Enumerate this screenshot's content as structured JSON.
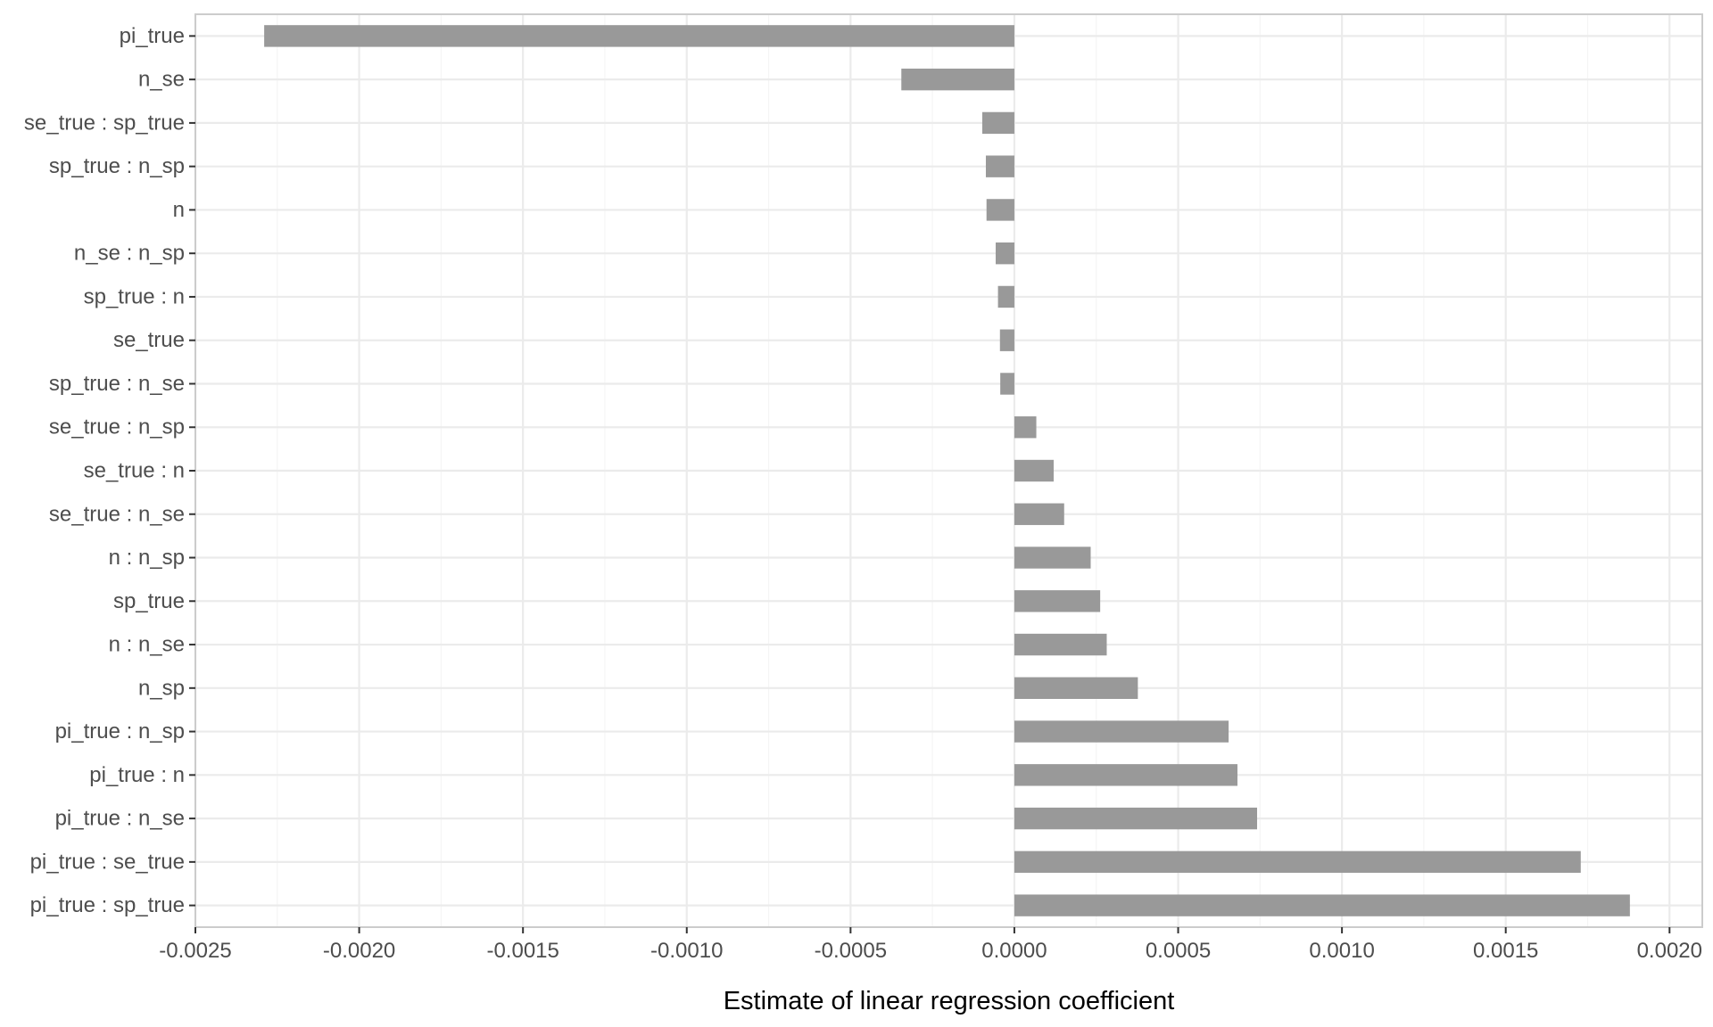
{
  "chart_data": {
    "type": "bar",
    "orientation": "horizontal",
    "xlabel": "Estimate of linear regression coefficient",
    "ylabel": "",
    "xlim": [
      -0.0025,
      0.0021
    ],
    "x_ticks": [
      -0.0025,
      -0.002,
      -0.0015,
      -0.001,
      -0.0005,
      0.0,
      0.0005,
      0.001,
      0.0015,
      0.002
    ],
    "x_tick_labels": [
      "-0.0025",
      "-0.0020",
      "-0.0015",
      "-0.0010",
      "-0.0005",
      "0.0000",
      "0.0005",
      "0.0010",
      "0.0015",
      "0.0020"
    ],
    "grid": true,
    "legend": "none",
    "categories": [
      "pi_true",
      "n_se",
      "se_true : sp_true",
      "sp_true : n_sp",
      "n",
      "n_se : n_sp",
      "sp_true : n",
      "se_true",
      "sp_true : n_se",
      "se_true : n_sp",
      "se_true : n",
      "se_true : n_se",
      "n : n_sp",
      "sp_true",
      "n : n_se",
      "n_sp",
      "pi_true : n_sp",
      "pi_true : n",
      "pi_true : n_se",
      "pi_true : se_true",
      "pi_true : sp_true"
    ],
    "values": [
      -0.00229,
      -0.000345,
      -9.8e-05,
      -8.7e-05,
      -8.5e-05,
      -5.7e-05,
      -5e-05,
      -4.4e-05,
      -4.3e-05,
      6.7e-05,
      0.00012,
      0.000152,
      0.000233,
      0.000262,
      0.000282,
      0.000377,
      0.000654,
      0.000681,
      0.000741,
      0.001729,
      0.001879
    ],
    "colors": {
      "bar": "#999999",
      "panel_border": "#cccccc",
      "grid_major": "#ebebeb",
      "grid_minor": "#f5f5f5",
      "tick": "#333333",
      "tick_label": "#4d4d4d",
      "axis_title": "#000000"
    }
  }
}
